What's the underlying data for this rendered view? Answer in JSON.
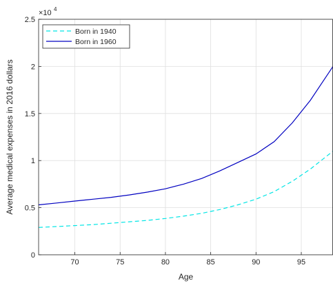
{
  "chart_data": {
    "type": "line",
    "title": "",
    "xlabel": "Age",
    "ylabel": "Average medical expenses in 2016 dollars",
    "y_exponent_label": "×10",
    "y_exponent_power": "4",
    "xlim": [
      66,
      98.5
    ],
    "ylim": [
      0,
      25000
    ],
    "x_ticks": [
      70,
      75,
      80,
      85,
      90,
      95
    ],
    "x_tick_labels": [
      "70",
      "75",
      "80",
      "85",
      "90",
      "95"
    ],
    "y_ticks": [
      0,
      5000,
      10000,
      15000,
      20000,
      25000
    ],
    "y_tick_labels": [
      "0",
      "0.5",
      "1",
      "1.5",
      "2",
      "2.5"
    ],
    "grid": true,
    "legend_position": "top-left",
    "series": [
      {
        "name": "Born in 1940",
        "color": "#00e5e5",
        "style": "dashed",
        "x": [
          66,
          68,
          70,
          72,
          74,
          76,
          78,
          80,
          82,
          84,
          86,
          88,
          90,
          92,
          94,
          96,
          98.5
        ],
        "y": [
          2900,
          3000,
          3100,
          3200,
          3350,
          3500,
          3650,
          3850,
          4100,
          4400,
          4800,
          5300,
          5900,
          6700,
          7800,
          9100,
          11000
        ]
      },
      {
        "name": "Born in 1960",
        "color": "#0000c0",
        "style": "solid",
        "x": [
          66,
          68,
          70,
          72,
          74,
          76,
          78,
          80,
          82,
          84,
          86,
          88,
          90,
          92,
          94,
          96,
          98.5
        ],
        "y": [
          5300,
          5500,
          5700,
          5900,
          6100,
          6350,
          6650,
          7000,
          7500,
          8100,
          8900,
          9800,
          10700,
          12000,
          14000,
          16400,
          20000
        ]
      }
    ]
  }
}
